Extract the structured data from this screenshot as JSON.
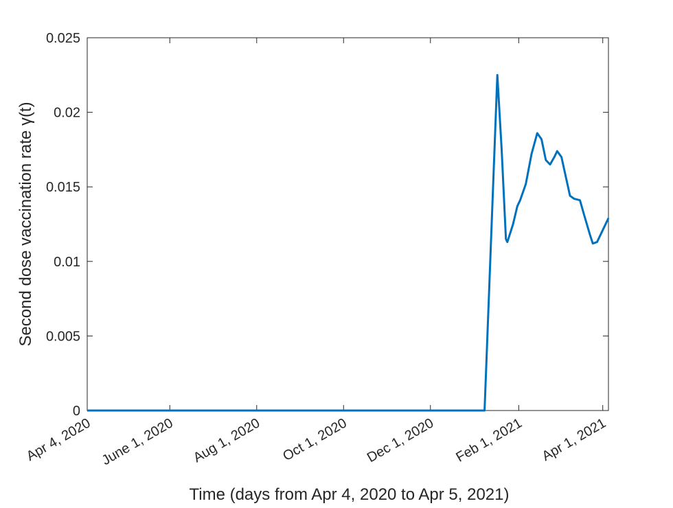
{
  "chart_data": {
    "type": "line",
    "title": "",
    "xlabel": "Time (days from Apr 4, 2020 to Apr 5, 2021)",
    "ylabel": "Second dose vaccination rate γ(t)",
    "xlim": [
      "2020-04-04",
      "2021-04-05"
    ],
    "ylim": [
      0,
      0.025
    ],
    "grid": false,
    "x_ticks": [
      {
        "date": "2020-04-04",
        "label": "Apr 4, 2020"
      },
      {
        "date": "2020-06-01",
        "label": "June 1, 2020"
      },
      {
        "date": "2020-08-01",
        "label": "Aug 1, 2020"
      },
      {
        "date": "2020-10-01",
        "label": "Oct 1, 2020"
      },
      {
        "date": "2020-12-01",
        "label": "Dec 1, 2020"
      },
      {
        "date": "2021-02-01",
        "label": "Feb 1, 2021"
      },
      {
        "date": "2021-04-01",
        "label": "Apr 1, 2021"
      }
    ],
    "y_ticks": [
      {
        "value": 0,
        "label": "0"
      },
      {
        "value": 0.005,
        "label": "0.005"
      },
      {
        "value": 0.01,
        "label": "0.01"
      },
      {
        "value": 0.015,
        "label": "0.015"
      },
      {
        "value": 0.02,
        "label": "0.02"
      },
      {
        "value": 0.025,
        "label": "0.025"
      }
    ],
    "series": [
      {
        "color": "#0072BD",
        "points": [
          {
            "x": "2020-04-04",
            "y": 0
          },
          {
            "x": "2021-01-08",
            "y": 0
          },
          {
            "x": "2021-01-17",
            "y": 0.0225
          },
          {
            "x": "2021-01-20",
            "y": 0.0175
          },
          {
            "x": "2021-01-23",
            "y": 0.0115
          },
          {
            "x": "2021-01-24",
            "y": 0.0113
          },
          {
            "x": "2021-01-28",
            "y": 0.0125
          },
          {
            "x": "2021-01-31",
            "y": 0.0137
          },
          {
            "x": "2021-02-02",
            "y": 0.0141
          },
          {
            "x": "2021-02-06",
            "y": 0.0152
          },
          {
            "x": "2021-02-10",
            "y": 0.0172
          },
          {
            "x": "2021-02-14",
            "y": 0.0186
          },
          {
            "x": "2021-02-17",
            "y": 0.0182
          },
          {
            "x": "2021-02-20",
            "y": 0.0168
          },
          {
            "x": "2021-02-23",
            "y": 0.0165
          },
          {
            "x": "2021-02-26",
            "y": 0.017
          },
          {
            "x": "2021-02-28",
            "y": 0.0174
          },
          {
            "x": "2021-03-03",
            "y": 0.017
          },
          {
            "x": "2021-03-06",
            "y": 0.0157
          },
          {
            "x": "2021-03-09",
            "y": 0.0144
          },
          {
            "x": "2021-03-12",
            "y": 0.0142
          },
          {
            "x": "2021-03-16",
            "y": 0.0141
          },
          {
            "x": "2021-03-19",
            "y": 0.0131
          },
          {
            "x": "2021-03-23",
            "y": 0.0118
          },
          {
            "x": "2021-03-25",
            "y": 0.0112
          },
          {
            "x": "2021-03-28",
            "y": 0.0113
          },
          {
            "x": "2021-04-01",
            "y": 0.0121
          },
          {
            "x": "2021-04-05",
            "y": 0.0129
          }
        ]
      }
    ]
  }
}
